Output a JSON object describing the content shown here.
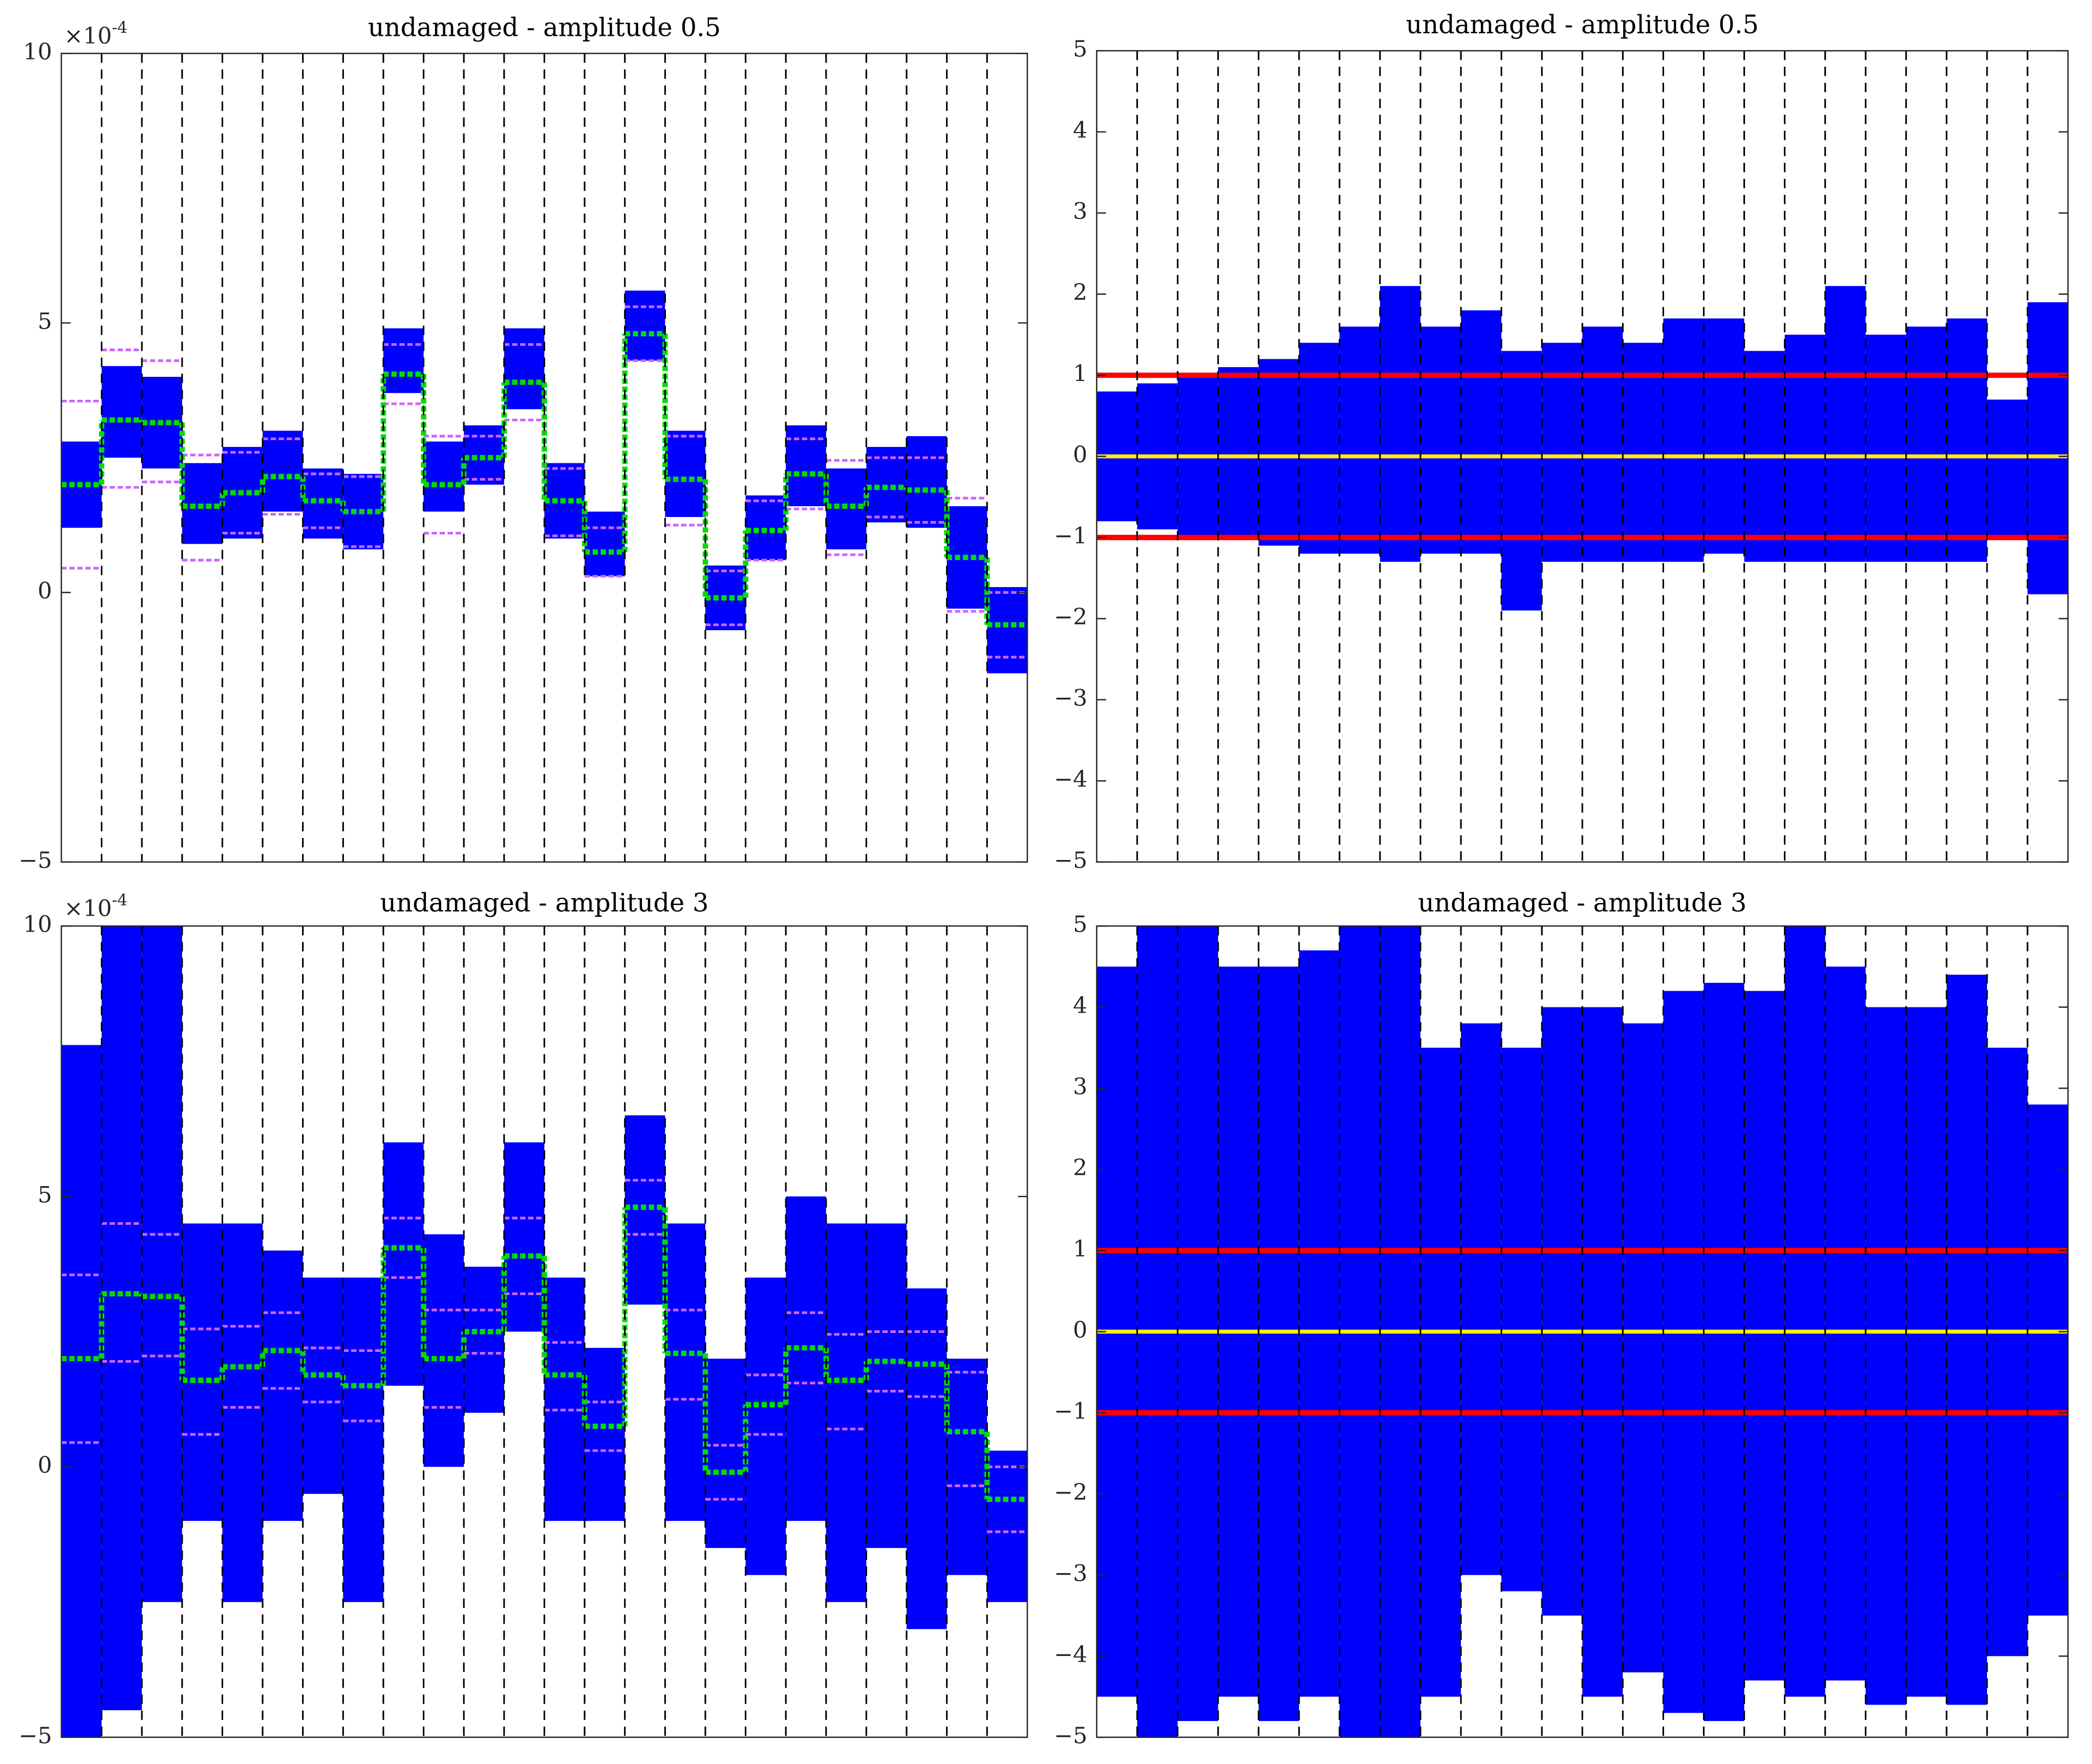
{
  "chart_data": [
    {
      "type": "step_band",
      "title": "undamaged - amplitude 0.5",
      "exponent_label": {
        "base": "×10",
        "exponent": "-4"
      },
      "xlim": [
        0,
        24
      ],
      "xlines": [
        1,
        2,
        3,
        4,
        5,
        6,
        7,
        8,
        9,
        10,
        11,
        12,
        13,
        14,
        15,
        16,
        17,
        18,
        19,
        20,
        21,
        22,
        23
      ],
      "ylim": [
        -5,
        10
      ],
      "yticks": [
        {
          "value": -5,
          "label": "−5"
        },
        0,
        5,
        10
      ],
      "envelope": {
        "color": "#0000ff",
        "low": [
          1.2,
          2.5,
          2.3,
          0.9,
          1.0,
          1.5,
          1.0,
          0.8,
          3.7,
          1.5,
          2.0,
          3.4,
          1.0,
          0.3,
          4.3,
          1.4,
          -0.7,
          0.6,
          1.6,
          0.8,
          1.3,
          1.2,
          -0.3,
          -1.5
        ],
        "high": [
          2.8,
          4.2,
          4.0,
          2.4,
          2.7,
          3.0,
          2.3,
          2.2,
          4.9,
          2.8,
          3.1,
          4.9,
          2.4,
          1.5,
          5.6,
          3.0,
          0.5,
          1.8,
          3.1,
          2.3,
          2.7,
          2.9,
          1.6,
          0.1
        ]
      },
      "mean": {
        "color": "#00dd00",
        "values": [
          2.0,
          3.2,
          3.15,
          1.6,
          1.85,
          2.15,
          1.7,
          1.5,
          4.05,
          2.0,
          2.5,
          3.9,
          1.7,
          0.75,
          4.8,
          2.1,
          -0.1,
          1.15,
          2.2,
          1.6,
          1.95,
          1.9,
          0.65,
          -0.6
        ]
      },
      "limits": {
        "color": "#cc66ff",
        "upper": [
          3.55,
          4.5,
          4.3,
          2.55,
          2.6,
          2.85,
          2.2,
          2.15,
          4.6,
          2.9,
          2.9,
          4.6,
          2.3,
          1.2,
          5.3,
          2.9,
          0.4,
          1.7,
          2.85,
          2.45,
          2.5,
          2.5,
          1.75,
          0
        ],
        "lower": [
          0.45,
          1.95,
          2.05,
          0.6,
          1.1,
          1.45,
          1.2,
          0.85,
          3.5,
          1.1,
          2.1,
          3.2,
          1.05,
          0.3,
          4.3,
          1.25,
          -0.6,
          0.6,
          1.55,
          0.7,
          1.4,
          1.3,
          -0.35,
          -1.2
        ]
      }
    },
    {
      "type": "band_threshold",
      "title": "undamaged - amplitude 0.5",
      "xlim": [
        0,
        24
      ],
      "xlines": [
        1,
        2,
        3,
        4,
        5,
        6,
        7,
        8,
        9,
        10,
        11,
        12,
        13,
        14,
        15,
        16,
        17,
        18,
        19,
        20,
        21,
        22,
        23
      ],
      "ylim": [
        -5,
        5
      ],
      "yticks": [
        {
          "value": -5,
          "label": "−5"
        },
        {
          "value": -4,
          "label": "−4"
        },
        {
          "value": -3,
          "label": "−3"
        },
        {
          "value": -2,
          "label": "−2"
        },
        {
          "value": -1,
          "label": "−1"
        },
        0,
        1,
        2,
        3,
        4,
        5
      ],
      "envelope": {
        "color": "#0000ff",
        "low": [
          -0.8,
          -0.9,
          -1.0,
          -1.0,
          -1.1,
          -1.2,
          -1.2,
          -1.3,
          -1.2,
          -1.2,
          -1.9,
          -1.3,
          -1.3,
          -1.3,
          -1.3,
          -1.2,
          -1.3,
          -1.3,
          -1.3,
          -1.3,
          -1.3,
          -1.3,
          -1.0,
          -1.7
        ],
        "high": [
          0.8,
          0.9,
          1.0,
          1.1,
          1.2,
          1.4,
          1.6,
          2.1,
          1.6,
          1.8,
          1.3,
          1.4,
          1.6,
          1.4,
          1.7,
          1.7,
          1.3,
          1.5,
          2.1,
          1.5,
          1.6,
          1.7,
          0.7,
          1.9
        ]
      },
      "thresholds": {
        "color": "#ff0000",
        "values": [
          1,
          -1
        ]
      },
      "center": {
        "color": "#ffee00",
        "value": 0
      }
    },
    {
      "type": "step_band",
      "title": "undamaged - amplitude 3",
      "exponent_label": {
        "base": "×10",
        "exponent": "-4"
      },
      "xlim": [
        0,
        24
      ],
      "xlines": [
        1,
        2,
        3,
        4,
        5,
        6,
        7,
        8,
        9,
        10,
        11,
        12,
        13,
        14,
        15,
        16,
        17,
        18,
        19,
        20,
        21,
        22,
        23
      ],
      "ylim": [
        -5,
        10
      ],
      "yticks": [
        {
          "value": -5,
          "label": "−5"
        },
        0,
        5,
        10
      ],
      "envelope": {
        "color": "#0000ff",
        "low": [
          -5,
          -4.5,
          -2.5,
          -1,
          -2.5,
          -1,
          -0.5,
          -2.5,
          1.5,
          0,
          1,
          2.5,
          -1,
          -1,
          3,
          -1,
          -1.5,
          -2,
          -1,
          -2.5,
          -1.5,
          -3,
          -2,
          -2.5
        ],
        "high": [
          7.8,
          10,
          10,
          4.5,
          4.5,
          4,
          3.5,
          3.5,
          6,
          4.3,
          3.7,
          6,
          3.5,
          2.2,
          6.5,
          4.5,
          2,
          3.5,
          5,
          4.5,
          4.5,
          3.3,
          2,
          0.3
        ]
      },
      "mean": {
        "color": "#00dd00",
        "values": [
          2.0,
          3.2,
          3.15,
          1.6,
          1.85,
          2.15,
          1.7,
          1.5,
          4.05,
          2.0,
          2.5,
          3.9,
          1.7,
          0.75,
          4.8,
          2.1,
          -0.1,
          1.15,
          2.2,
          1.6,
          1.95,
          1.9,
          0.65,
          -0.6
        ]
      },
      "limits": {
        "color": "#cc66ff",
        "upper": [
          3.55,
          4.5,
          4.3,
          2.55,
          2.6,
          2.85,
          2.2,
          2.15,
          4.6,
          2.9,
          2.9,
          4.6,
          2.3,
          1.2,
          5.3,
          2.9,
          0.4,
          1.7,
          2.85,
          2.45,
          2.5,
          2.5,
          1.75,
          0
        ],
        "lower": [
          0.45,
          1.95,
          2.05,
          0.6,
          1.1,
          1.45,
          1.2,
          0.85,
          3.5,
          1.1,
          2.1,
          3.2,
          1.05,
          0.3,
          4.3,
          1.25,
          -0.6,
          0.6,
          1.55,
          0.7,
          1.4,
          1.3,
          -0.35,
          -1.2
        ]
      }
    },
    {
      "type": "band_threshold",
      "title": "undamaged - amplitude 3",
      "xlim": [
        0,
        24
      ],
      "xlines": [
        1,
        2,
        3,
        4,
        5,
        6,
        7,
        8,
        9,
        10,
        11,
        12,
        13,
        14,
        15,
        16,
        17,
        18,
        19,
        20,
        21,
        22,
        23
      ],
      "ylim": [
        -5,
        5
      ],
      "yticks": [
        {
          "value": -5,
          "label": "−5"
        },
        {
          "value": -4,
          "label": "−4"
        },
        {
          "value": -3,
          "label": "−3"
        },
        {
          "value": -2,
          "label": "−2"
        },
        {
          "value": -1,
          "label": "−1"
        },
        0,
        1,
        2,
        3,
        4,
        5
      ],
      "envelope": {
        "color": "#0000ff",
        "low": [
          -4.5,
          -5,
          -4.8,
          -4.5,
          -4.8,
          -4.5,
          -5,
          -5,
          -4.5,
          -3,
          -3.2,
          -3.5,
          -4.5,
          -4.2,
          -4.7,
          -4.8,
          -4.3,
          -4.5,
          -4.3,
          -4.6,
          -4.5,
          -4.6,
          -4,
          -3.5
        ],
        "high": [
          4.5,
          5,
          5,
          4.5,
          4.5,
          4.7,
          5,
          5,
          3.5,
          3.8,
          3.5,
          4,
          4,
          3.8,
          4.2,
          4.3,
          4.2,
          5,
          4.5,
          4,
          4,
          4.4,
          3.5,
          2.8
        ]
      },
      "thresholds": {
        "color": "#ff0000",
        "values": [
          1,
          -1
        ]
      },
      "center": {
        "color": "#ffee00",
        "value": 0
      }
    }
  ]
}
